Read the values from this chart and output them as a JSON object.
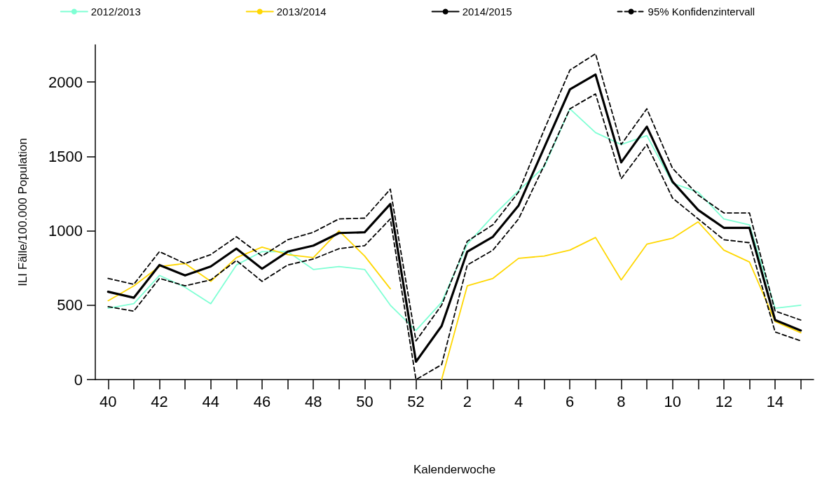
{
  "chart_data": {
    "type": "line",
    "xlabel": "Kalenderwoche",
    "ylabel": "ILI Fälle/100.000 Population",
    "categories": [
      "40",
      null,
      "42",
      null,
      "44",
      null,
      "46",
      null,
      "48",
      null,
      "50",
      null,
      "52",
      null,
      "2",
      null,
      "4",
      null,
      "6",
      null,
      "8",
      null,
      "10",
      null,
      "12",
      null,
      "14",
      null
    ],
    "series": [
      {
        "name": "2012/2013",
        "color": "#7fffd4",
        "line_style": "solid",
        "values": [
          480,
          510,
          700,
          620,
          510,
          770,
          860,
          860,
          740,
          760,
          740,
          500,
          330,
          520,
          910,
          1100,
          1270,
          1430,
          1820,
          1660,
          1580,
          1640,
          1320,
          1260,
          1080,
          1040,
          480,
          500
        ]
      },
      {
        "name": "2013/2014",
        "color": "#ffd700",
        "line_style": "solid",
        "values": [
          530,
          630,
          760,
          780,
          660,
          820,
          890,
          840,
          820,
          1000,
          830,
          610,
          null,
          0,
          630,
          680,
          815,
          830,
          870,
          955,
          670,
          910,
          950,
          1060,
          870,
          790,
          390,
          315
        ]
      },
      {
        "name": "2014/2015",
        "color": "#000000",
        "line_style": "solid",
        "values": [
          590,
          550,
          770,
          700,
          760,
          880,
          745,
          860,
          900,
          985,
          990,
          1180,
          120,
          360,
          860,
          960,
          1170,
          1560,
          1950,
          2050,
          1460,
          1700,
          1330,
          1140,
          1020,
          1020,
          400,
          330
        ]
      },
      {
        "name": "95% Konfidenzintervall",
        "color": "#000000",
        "line_style": "dashed",
        "values": [
          680,
          640,
          860,
          780,
          840,
          960,
          830,
          940,
          990,
          1080,
          1085,
          1280,
          260,
          500,
          930,
          1040,
          1260,
          1680,
          2080,
          2190,
          1580,
          1820,
          1420,
          1240,
          1120,
          1120,
          460,
          400
        ]
      },
      {
        "color": "#000000",
        "line_style": "dashed",
        "values": [
          490,
          460,
          680,
          630,
          670,
          800,
          660,
          770,
          810,
          880,
          900,
          1080,
          0,
          100,
          770,
          870,
          1080,
          1440,
          1820,
          1920,
          1350,
          1580,
          1220,
          1080,
          940,
          920,
          320,
          260
        ]
      }
    ],
    "ylim": [
      0,
      2250
    ],
    "yticks": [
      0,
      500,
      1000,
      1500,
      2000
    ],
    "grid": false,
    "legend": "top",
    "marker": "none"
  }
}
